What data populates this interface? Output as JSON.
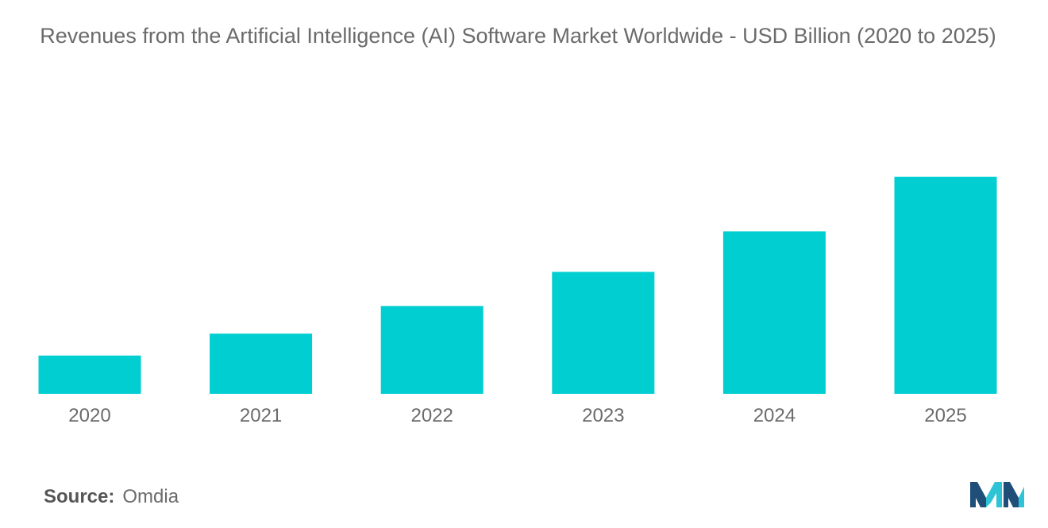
{
  "colors": {
    "bar": "#00CED1",
    "text": "#6b6b6b",
    "logo_dark": "#1f4e79",
    "logo_light": "#2ec4d6"
  },
  "header": {
    "title": "Revenues from the Artificial Intelligence (AI) Software Market Worldwide - USD Billion (2020 to 2025)"
  },
  "footer": {
    "source_label": "Source:",
    "source_value": "Omdia"
  },
  "logo": {
    "icon": "mordor-intelligence-logo-icon"
  },
  "chart_data": {
    "type": "bar",
    "categories": [
      "2020",
      "2021",
      "2022",
      "2023",
      "2024",
      "2025"
    ],
    "values": [
      10.1,
      15.9,
      23.2,
      32.2,
      42.9,
      57.3
    ],
    "title": "Revenues from the Artificial Intelligence (AI) Software Market Worldwide - USD Billion (2020 to 2025)",
    "xlabel": "",
    "ylabel": "",
    "ylim": [
      0,
      65
    ],
    "grid": false,
    "legend": "none",
    "data_labels": false,
    "y_axis_visible": false
  }
}
